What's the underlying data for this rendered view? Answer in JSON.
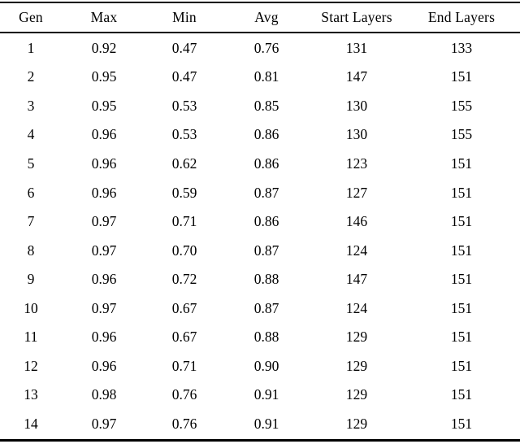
{
  "table": {
    "columns": [
      "Gen",
      "Max",
      "Min",
      "Avg",
      "Start Layers",
      "End Layers"
    ],
    "rows": [
      [
        "1",
        "0.92",
        "0.47",
        "0.76",
        "131",
        "133"
      ],
      [
        "2",
        "0.95",
        "0.47",
        "0.81",
        "147",
        "151"
      ],
      [
        "3",
        "0.95",
        "0.53",
        "0.85",
        "130",
        "155"
      ],
      [
        "4",
        "0.96",
        "0.53",
        "0.86",
        "130",
        "155"
      ],
      [
        "5",
        "0.96",
        "0.62",
        "0.86",
        "123",
        "151"
      ],
      [
        "6",
        "0.96",
        "0.59",
        "0.87",
        "127",
        "151"
      ],
      [
        "7",
        "0.97",
        "0.71",
        "0.86",
        "146",
        "151"
      ],
      [
        "8",
        "0.97",
        "0.70",
        "0.87",
        "124",
        "151"
      ],
      [
        "9",
        "0.96",
        "0.72",
        "0.88",
        "147",
        "151"
      ],
      [
        "10",
        "0.97",
        "0.67",
        "0.87",
        "124",
        "151"
      ],
      [
        "11",
        "0.96",
        "0.67",
        "0.88",
        "129",
        "151"
      ],
      [
        "12",
        "0.96",
        "0.71",
        "0.90",
        "129",
        "151"
      ],
      [
        "13",
        "0.98",
        "0.76",
        "0.91",
        "129",
        "151"
      ],
      [
        "14",
        "0.97",
        "0.76",
        "0.91",
        "129",
        "151"
      ]
    ],
    "rules_color": "#000000",
    "text_color": "#000000",
    "background_color": "#ffffff"
  }
}
